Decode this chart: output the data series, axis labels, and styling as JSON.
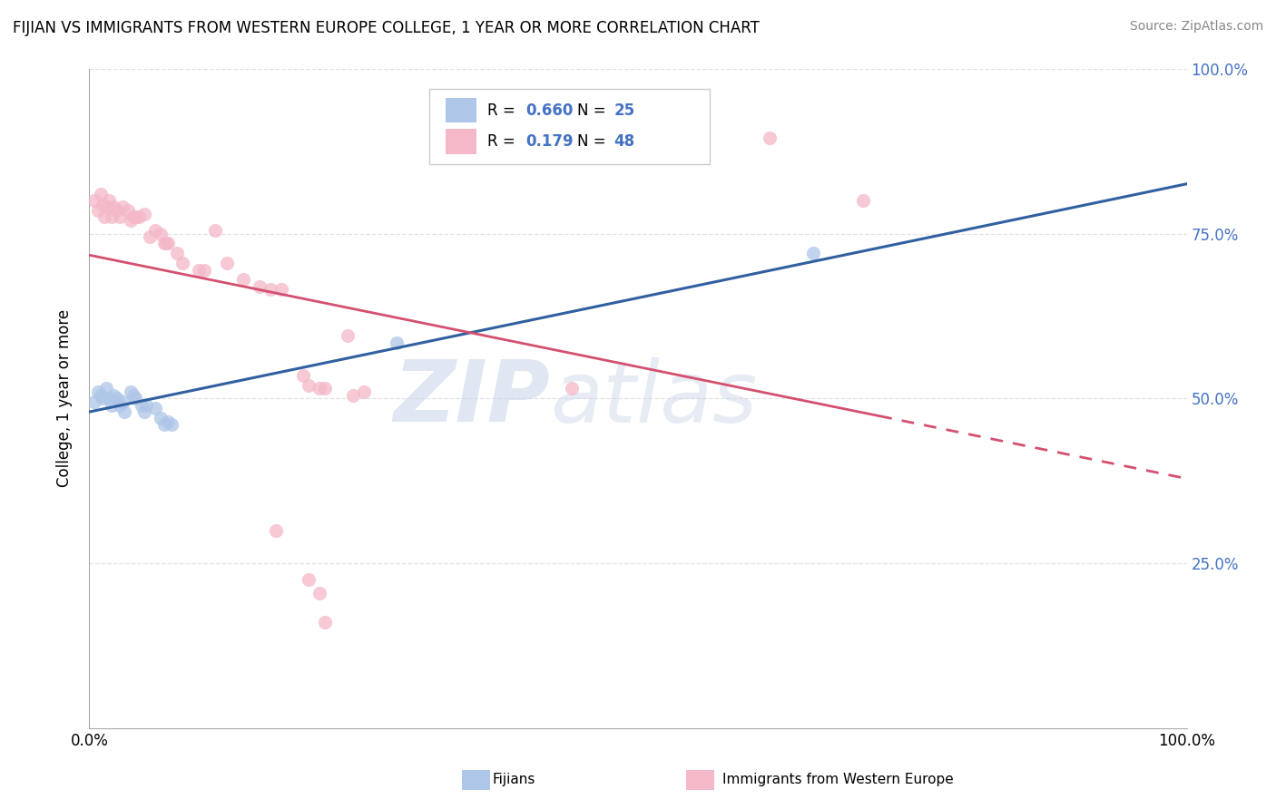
{
  "title": "FIJIAN VS IMMIGRANTS FROM WESTERN EUROPE COLLEGE, 1 YEAR OR MORE CORRELATION CHART",
  "source": "Source: ZipAtlas.com",
  "ylabel": "College, 1 year or more",
  "legend_label1": "Fijians",
  "legend_label2": "Immigrants from Western Europe",
  "r1": "0.660",
  "n1": "25",
  "r2": "0.179",
  "n2": "48",
  "blue_color": "#aec6e8",
  "pink_color": "#f4b8c8",
  "blue_line_color": "#3060a0",
  "pink_line_color": "#d45070",
  "blue_points": [
    [
      0.005,
      0.495
    ],
    [
      0.008,
      0.51
    ],
    [
      0.01,
      0.505
    ],
    [
      0.012,
      0.5
    ],
    [
      0.015,
      0.515
    ],
    [
      0.018,
      0.5
    ],
    [
      0.02,
      0.49
    ],
    [
      0.022,
      0.505
    ],
    [
      0.025,
      0.5
    ],
    [
      0.028,
      0.49
    ],
    [
      0.03,
      0.495
    ],
    [
      0.032,
      0.48
    ],
    [
      0.038,
      0.51
    ],
    [
      0.04,
      0.505
    ],
    [
      0.042,
      0.5
    ],
    [
      0.048,
      0.49
    ],
    [
      0.05,
      0.48
    ],
    [
      0.052,
      0.49
    ],
    [
      0.06,
      0.485
    ],
    [
      0.065,
      0.47
    ],
    [
      0.068,
      0.46
    ],
    [
      0.072,
      0.465
    ],
    [
      0.075,
      0.46
    ],
    [
      0.28,
      0.585
    ],
    [
      0.66,
      0.72
    ]
  ],
  "pink_points": [
    [
      0.005,
      0.8
    ],
    [
      0.008,
      0.785
    ],
    [
      0.01,
      0.81
    ],
    [
      0.012,
      0.795
    ],
    [
      0.014,
      0.775
    ],
    [
      0.016,
      0.79
    ],
    [
      0.018,
      0.8
    ],
    [
      0.02,
      0.775
    ],
    [
      0.022,
      0.79
    ],
    [
      0.025,
      0.785
    ],
    [
      0.028,
      0.775
    ],
    [
      0.03,
      0.79
    ],
    [
      0.035,
      0.785
    ],
    [
      0.038,
      0.77
    ],
    [
      0.04,
      0.775
    ],
    [
      0.042,
      0.775
    ],
    [
      0.045,
      0.775
    ],
    [
      0.05,
      0.78
    ],
    [
      0.055,
      0.745
    ],
    [
      0.06,
      0.755
    ],
    [
      0.065,
      0.75
    ],
    [
      0.068,
      0.735
    ],
    [
      0.07,
      0.735
    ],
    [
      0.072,
      0.735
    ],
    [
      0.08,
      0.72
    ],
    [
      0.085,
      0.705
    ],
    [
      0.1,
      0.695
    ],
    [
      0.105,
      0.695
    ],
    [
      0.115,
      0.755
    ],
    [
      0.125,
      0.705
    ],
    [
      0.14,
      0.68
    ],
    [
      0.155,
      0.67
    ],
    [
      0.165,
      0.665
    ],
    [
      0.175,
      0.665
    ],
    [
      0.2,
      0.52
    ],
    [
      0.21,
      0.515
    ],
    [
      0.215,
      0.515
    ],
    [
      0.24,
      0.505
    ],
    [
      0.25,
      0.51
    ],
    [
      0.195,
      0.535
    ],
    [
      0.44,
      0.515
    ],
    [
      0.17,
      0.3
    ],
    [
      0.2,
      0.225
    ],
    [
      0.21,
      0.205
    ],
    [
      0.215,
      0.16
    ],
    [
      0.62,
      0.895
    ],
    [
      0.235,
      0.595
    ],
    [
      0.705,
      0.8
    ]
  ],
  "xlim": [
    0,
    1
  ],
  "ylim": [
    0,
    1
  ],
  "yticks": [
    0.25,
    0.5,
    0.75,
    1.0
  ],
  "ytick_labels": [
    "25.0%",
    "50.0%",
    "75.0%",
    "100.0%"
  ],
  "watermark_zip": "ZIP",
  "watermark_atlas": "atlas",
  "background_color": "#ffffff",
  "grid_color": "#e0e0e8"
}
